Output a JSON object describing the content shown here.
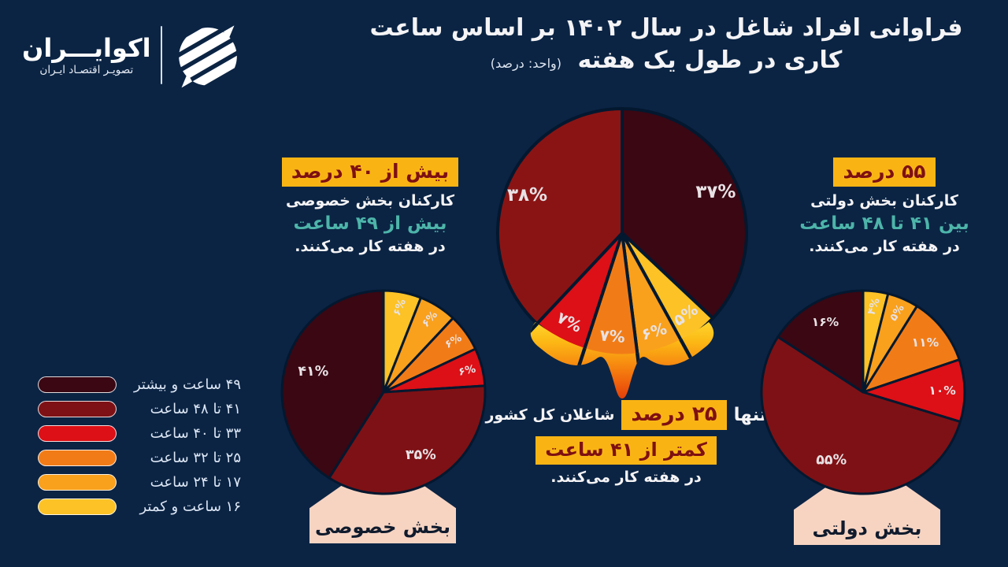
{
  "page": {
    "background": "#0b2444"
  },
  "logo": {
    "title": "اکوایـــران",
    "subtitle": "تصویـر اقتصـاد ایـران"
  },
  "header": {
    "title_line1": "فراوانی افراد شاغل در سال ۱۴۰۲ بر اساس ساعت",
    "title_line2": "کاری در طول یک هفته",
    "unit_note": "(واحد: درصد)"
  },
  "annotations": {
    "private": {
      "highlight": "بیش از ۴۰ درصد",
      "who": "کارکنان بخش خصوصی",
      "hours": "بیش از ۴۹ ساعت",
      "tail": "در هفته کار می‌کنند."
    },
    "government": {
      "highlight": "۵۵ درصد",
      "who": "کارکنان بخش دولتی",
      "hours": "بین ۴۱ تا ۴۸ ساعت",
      "tail": "در هفته کار می‌کنند."
    },
    "total": {
      "prefix": "تنها",
      "highlight_percent": "۲۵ درصد",
      "who": "شاغلان کل کشور",
      "highlight_hours": "کمتر از ۴۱ ساعت",
      "tail": "در هفته کار می‌کنند."
    }
  },
  "pedestals": {
    "private": "بخش خصوصی",
    "government": "بخش دولتی"
  },
  "legend": {
    "items": [
      {
        "label": "۴۹ ساعت و بیشتر",
        "color": "#3a0713"
      },
      {
        "label": "۴۱ تا ۴۸ ساعت",
        "color": "#7e1115"
      },
      {
        "label": "۳۳ تا ۴۰ ساعت",
        "color": "#dc1016"
      },
      {
        "label": "۲۵ تا ۳۲ ساعت",
        "color": "#f17c17"
      },
      {
        "label": "۱۷ تا ۲۴ ساعت",
        "color": "#f9a01d"
      },
      {
        "label": "۱۶ ساعت و کمتر",
        "color": "#fcc226"
      }
    ]
  },
  "colors": {
    "background": "#0b2444",
    "highlight_bg": "#f9b414",
    "highlight_text": "#7e1012",
    "teal": "#4db4a9",
    "white_text": "#f4f3f5",
    "slice_label": "#e8e2e5",
    "slice_stroke": "#03182f",
    "pedestal_bg": "#f7d4c2",
    "pedestal_text": "#101b2d",
    "melt_gradient": [
      "#ffdf35",
      "#fcb915",
      "#f78c10",
      "#ef5f0c",
      "#df360a"
    ]
  },
  "chart_data": [
    {
      "type": "pie",
      "id": "total-pie",
      "direction": "clockwise",
      "start": "top",
      "melted_bottom": true,
      "slices": [
        {
          "category": "۴۹ ساعت و بیشتر",
          "value": 37,
          "label": "۳۷%",
          "color": "#3a0713"
        },
        {
          "category": "۱۶ ساعت و کمتر",
          "value": 5,
          "label": "۵%",
          "color": "#fcc226"
        },
        {
          "category": "۱۷ تا ۲۴ ساعت",
          "value": 6,
          "label": "۶%",
          "color": "#f9a01d"
        },
        {
          "category": "۲۵ تا ۳۲ ساعت",
          "value": 7,
          "label": "۷%",
          "color": "#f17c17"
        },
        {
          "category": "۳۳ تا ۴۰ ساعت",
          "value": 7,
          "label": "۷%",
          "color": "#dc1016"
        },
        {
          "category": "۴۱ تا ۴۸ ساعت",
          "value": 38,
          "label": "۳۸%",
          "color": "#8a1414"
        }
      ]
    },
    {
      "type": "pie",
      "id": "private-pie",
      "direction": "clockwise",
      "start": "top",
      "melted_bottom": false,
      "slices": [
        {
          "category": "۱۶ ساعت و کمتر",
          "value": 6,
          "label": "۶%",
          "color": "#fcc226"
        },
        {
          "category": "۱۷ تا ۲۴ ساعت",
          "value": 6,
          "label": "۶%",
          "color": "#f9a01d"
        },
        {
          "category": "۲۵ تا ۳۲ ساعت",
          "value": 6,
          "label": "۶%",
          "color": "#f17c17"
        },
        {
          "category": "۳۳ تا ۴۰ ساعت",
          "value": 6,
          "label": "۶%",
          "color": "#dc1016"
        },
        {
          "category": "۴۱ تا ۴۸ ساعت",
          "value": 35,
          "label": "۳۵%",
          "color": "#7e1115"
        },
        {
          "category": "۴۹ ساعت و بیشتر",
          "value": 41,
          "label": "۴۱%",
          "color": "#3a0713"
        }
      ]
    },
    {
      "type": "pie",
      "id": "government-pie",
      "direction": "clockwise",
      "start": "top",
      "melted_bottom": false,
      "slices": [
        {
          "category": "۱۶ ساعت و کمتر",
          "value": 4,
          "label": "۴%",
          "color": "#fcc226"
        },
        {
          "category": "۱۷ تا ۲۴ ساعت",
          "value": 5,
          "label": "۵%",
          "color": "#f9a01d"
        },
        {
          "category": "۲۵ تا ۳۲ ساعت",
          "value": 11,
          "label": "۱۱%",
          "color": "#f17c17"
        },
        {
          "category": "۳۳ تا ۴۰ ساعت",
          "value": 10,
          "label": "۱۰%",
          "color": "#dc1016"
        },
        {
          "category": "۴۱ تا ۴۸ ساعت",
          "value": 55,
          "label": "۵۵%",
          "color": "#7e1115"
        },
        {
          "category": "۴۹ ساعت و بیشتر",
          "value": 16,
          "label": "۱۶%",
          "color": "#3a0713"
        }
      ]
    }
  ]
}
